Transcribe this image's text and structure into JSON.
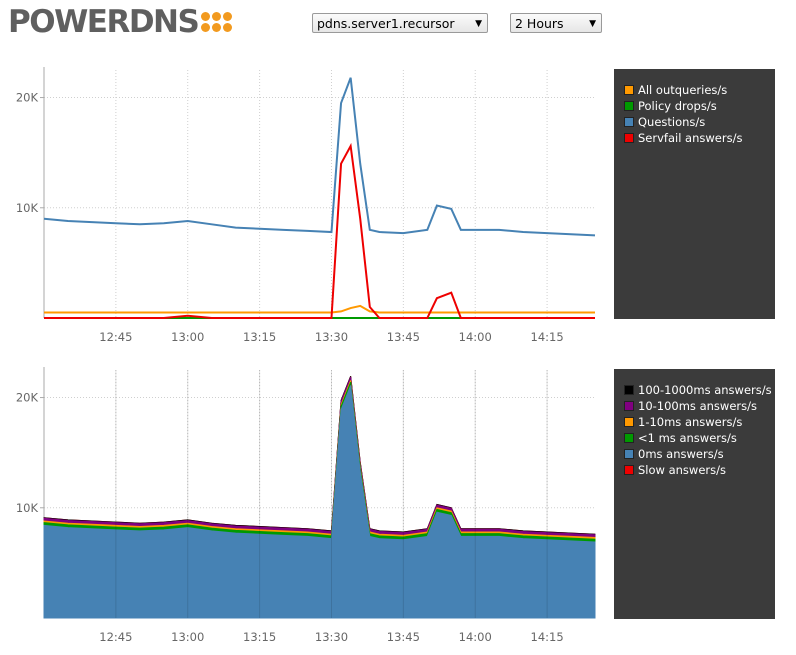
{
  "header": {
    "logo_text": "POWERDNS",
    "server_select": "pdns.server1.recursor",
    "range_select": "2 Hours"
  },
  "chart_data": [
    {
      "type": "line",
      "x": [
        "12:30",
        "12:35",
        "12:40",
        "12:45",
        "12:50",
        "12:55",
        "13:00",
        "13:05",
        "13:10",
        "13:15",
        "13:20",
        "13:25",
        "13:30",
        "13:32",
        "13:34",
        "13:36",
        "13:38",
        "13:40",
        "13:45",
        "13:50",
        "13:52",
        "13:55",
        "13:57",
        "14:00",
        "14:05",
        "14:10",
        "14:15",
        "14:20",
        "14:25"
      ],
      "x_ticks": [
        "12:45",
        "13:00",
        "13:15",
        "13:30",
        "13:45",
        "14:00",
        "14:15"
      ],
      "y_ticks": [
        "10K",
        "20K"
      ],
      "ylim": [
        0,
        22500
      ],
      "grid": true,
      "legend_position": "right",
      "series": [
        {
          "name": "All outqueries/s",
          "color": "#ff9900",
          "values": [
            500,
            500,
            500,
            500,
            500,
            500,
            500,
            500,
            500,
            500,
            500,
            500,
            500,
            600,
            900,
            1100,
            600,
            500,
            500,
            500,
            500,
            500,
            500,
            500,
            500,
            500,
            500,
            500,
            500
          ]
        },
        {
          "name": "Policy drops/s",
          "color": "#009900",
          "values": [
            0,
            0,
            0,
            0,
            0,
            0,
            0,
            0,
            0,
            0,
            0,
            0,
            0,
            0,
            0,
            0,
            0,
            0,
            0,
            0,
            0,
            0,
            0,
            0,
            0,
            0,
            0,
            0,
            0
          ]
        },
        {
          "name": "Questions/s",
          "color": "#4682b4",
          "values": [
            9000,
            8800,
            8700,
            8600,
            8500,
            8600,
            8800,
            8500,
            8200,
            8100,
            8000,
            7900,
            7800,
            19500,
            21800,
            14000,
            8000,
            7800,
            7700,
            8000,
            10200,
            9900,
            8000,
            8000,
            8000,
            7800,
            7700,
            7600,
            7500
          ]
        },
        {
          "name": "Servfail answers/s",
          "color": "#ee0000",
          "values": [
            0,
            0,
            0,
            0,
            0,
            0,
            200,
            0,
            0,
            0,
            0,
            0,
            0,
            14000,
            15600,
            9000,
            1000,
            0,
            0,
            0,
            1800,
            2300,
            0,
            0,
            0,
            0,
            0,
            0,
            0
          ]
        }
      ]
    },
    {
      "type": "area",
      "x": [
        "12:30",
        "12:35",
        "12:40",
        "12:45",
        "12:50",
        "12:55",
        "13:00",
        "13:05",
        "13:10",
        "13:15",
        "13:20",
        "13:25",
        "13:30",
        "13:32",
        "13:34",
        "13:36",
        "13:38",
        "13:40",
        "13:45",
        "13:50",
        "13:52",
        "13:55",
        "13:57",
        "14:00",
        "14:05",
        "14:10",
        "14:15",
        "14:20",
        "14:25"
      ],
      "x_ticks": [
        "12:45",
        "13:00",
        "13:15",
        "13:30",
        "13:45",
        "14:00",
        "14:15"
      ],
      "y_ticks": [
        "10K",
        "20K"
      ],
      "ylim": [
        0,
        22500
      ],
      "grid": true,
      "stacked": true,
      "legend_position": "right",
      "series": [
        {
          "name": "100-1000ms answers/s",
          "color": "#000000",
          "values": [
            50,
            50,
            50,
            50,
            50,
            50,
            50,
            50,
            50,
            50,
            50,
            50,
            50,
            80,
            80,
            80,
            50,
            50,
            50,
            50,
            50,
            50,
            50,
            50,
            50,
            50,
            50,
            50,
            50
          ]
        },
        {
          "name": "10-100ms answers/s",
          "color": "#800080",
          "values": [
            250,
            250,
            250,
            250,
            250,
            250,
            250,
            250,
            250,
            250,
            250,
            250,
            250,
            300,
            300,
            300,
            250,
            250,
            250,
            250,
            250,
            250,
            250,
            250,
            250,
            250,
            250,
            250,
            250
          ]
        },
        {
          "name": "1-10ms answers/s",
          "color": "#ff9900",
          "values": [
            150,
            150,
            150,
            150,
            150,
            150,
            150,
            150,
            150,
            150,
            150,
            150,
            150,
            150,
            150,
            150,
            150,
            150,
            150,
            150,
            150,
            150,
            150,
            150,
            150,
            150,
            150,
            150,
            150
          ]
        },
        {
          "name": "<1 ms answers/s",
          "color": "#009900",
          "values": [
            250,
            250,
            250,
            250,
            250,
            250,
            250,
            250,
            250,
            250,
            250,
            250,
            250,
            300,
            300,
            300,
            250,
            250,
            250,
            250,
            250,
            250,
            250,
            250,
            250,
            250,
            250,
            250,
            250
          ]
        },
        {
          "name": "0ms answers/s",
          "color": "#4682b4",
          "values": [
            8400,
            8200,
            8100,
            8000,
            7900,
            8000,
            8200,
            7900,
            7700,
            7600,
            7500,
            7400,
            7200,
            18900,
            21100,
            13300,
            7400,
            7200,
            7100,
            7400,
            9600,
            9300,
            7400,
            7400,
            7400,
            7200,
            7100,
            7000,
            6900
          ]
        },
        {
          "name": "Slow answers/s",
          "color": "#ee0000",
          "values": [
            0,
            0,
            0,
            0,
            0,
            0,
            0,
            0,
            0,
            0,
            0,
            0,
            0,
            0,
            0,
            0,
            0,
            0,
            0,
            0,
            0,
            0,
            0,
            0,
            0,
            0,
            0,
            0,
            0
          ]
        }
      ]
    }
  ]
}
